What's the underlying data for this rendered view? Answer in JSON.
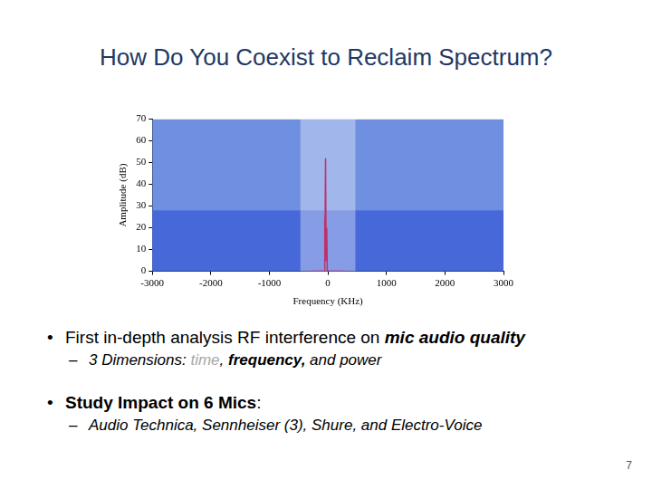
{
  "slide": {
    "title": "How Do You Coexist to Reclaim Spectrum?",
    "bullets": [
      {
        "bullet": "•",
        "parts": [
          {
            "text": "First in-depth analysis RF interference on "
          },
          {
            "text": "mic audio quality",
            "style": "emph"
          }
        ],
        "sub": [
          {
            "bullet": "–",
            "parts": [
              {
                "text": "3 Dimensions:  "
              },
              {
                "text": "time",
                "style": "muted"
              },
              {
                "text": ",  "
              },
              {
                "text": "frequency,",
                "style": "bold"
              },
              {
                "text": " and power"
              }
            ]
          }
        ]
      },
      {
        "bullet": "•",
        "parts": [
          {
            "text": "Study Impact on 6 Mics",
            "style": "bold"
          },
          {
            "text": ":"
          }
        ],
        "sub": [
          {
            "bullet": "–",
            "parts": [
              {
                "text": "Audio Technica, Sennheiser (3), Shure, and Electro-Voice"
              }
            ]
          }
        ]
      }
    ],
    "page_number": 7
  },
  "chart_data": {
    "type": "line",
    "x_label": "Frequency (KHz)",
    "y_label": "Amplitude (dB)",
    "x": [
      -300,
      -60,
      -55,
      -50,
      -40,
      -30,
      -20,
      -10,
      300
    ],
    "values": [
      0,
      0,
      25,
      3,
      52,
      5,
      20,
      0,
      0
    ],
    "color": "#c0306a",
    "xlim": [
      -3000,
      3000
    ],
    "xticks": [
      -3000,
      -2000,
      -1000,
      0,
      1000,
      2000,
      3000
    ],
    "ylim": [
      0,
      70
    ],
    "yticks": [
      0,
      10,
      20,
      30,
      40,
      50,
      60,
      70
    ],
    "grid": false,
    "regions": [
      {
        "x": [
          -3000,
          3000
        ],
        "y": [
          0,
          70
        ],
        "color": "#6f8fe0"
      },
      {
        "x": [
          -3000,
          3000
        ],
        "y": [
          0,
          28
        ],
        "color": "#4668d8"
      },
      {
        "x": [
          -470,
          470
        ],
        "y": [
          0,
          70
        ],
        "color": "rgba(255,255,255,0.35)"
      }
    ]
  }
}
